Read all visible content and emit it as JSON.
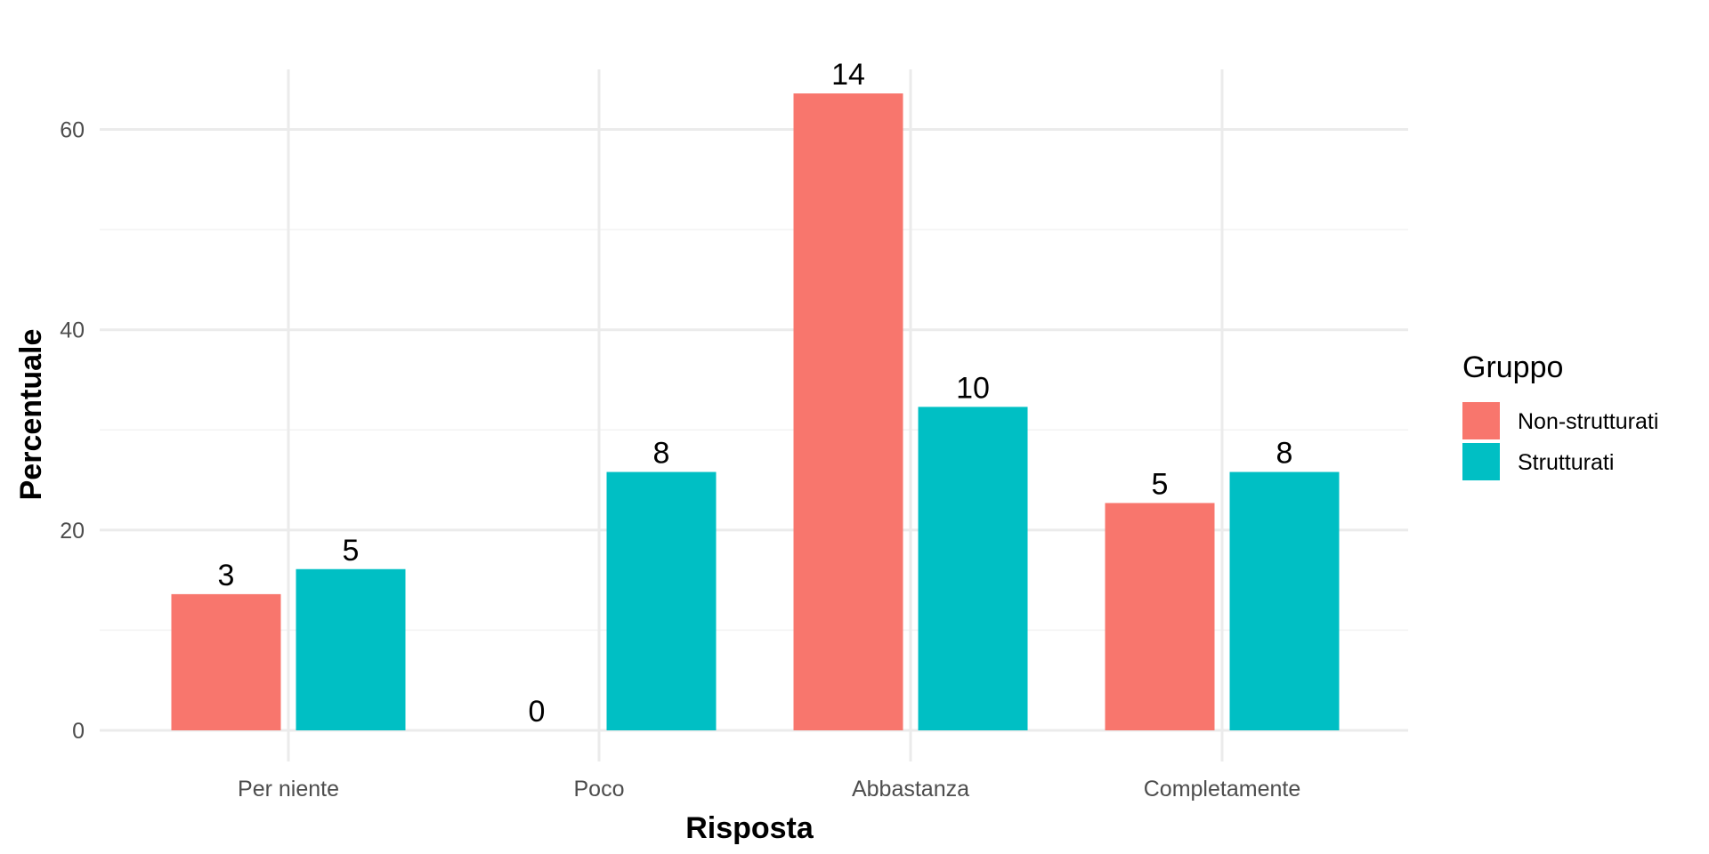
{
  "chart_data": {
    "type": "bar",
    "xlabel": "Risposta",
    "ylabel": "Percentuale",
    "categories": [
      "Per niente",
      "Poco",
      "Abbastanza",
      "Completamente"
    ],
    "ylim": [
      0,
      66
    ],
    "yticks": [
      0,
      20,
      40,
      60
    ],
    "grid": true,
    "legend": {
      "title": "Gruppo",
      "position": "right"
    },
    "series": [
      {
        "name": "Non-strutturati",
        "color": "#F8766D",
        "values": [
          13.6,
          0,
          63.6,
          22.7
        ],
        "labels": [
          "3",
          "0",
          "14",
          "5"
        ]
      },
      {
        "name": "Strutturati",
        "color": "#00BFC4",
        "values": [
          16.1,
          25.8,
          32.3,
          25.8
        ],
        "labels": [
          "5",
          "8",
          "10",
          "8"
        ]
      }
    ]
  }
}
